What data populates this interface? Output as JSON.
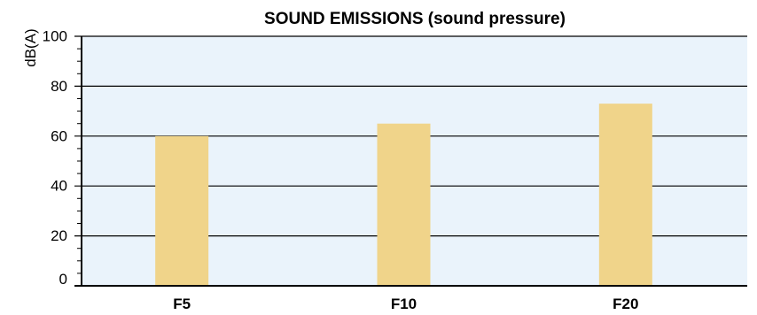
{
  "chart_data": {
    "type": "bar",
    "title": "SOUND EMISSIONS (sound pressure)",
    "xlabel": "",
    "ylabel": "dB(A)",
    "categories": [
      "F5",
      "F10",
      "F20"
    ],
    "values": [
      60,
      65,
      73
    ],
    "ylim": [
      0,
      100
    ],
    "yticks": [
      "0",
      "20",
      "40",
      "60",
      "80",
      "100"
    ],
    "grid": true,
    "legend": "none",
    "colors": {
      "bar": "#F0D48A",
      "plot_background": "#EAF3FB",
      "axis": "#000000"
    }
  }
}
